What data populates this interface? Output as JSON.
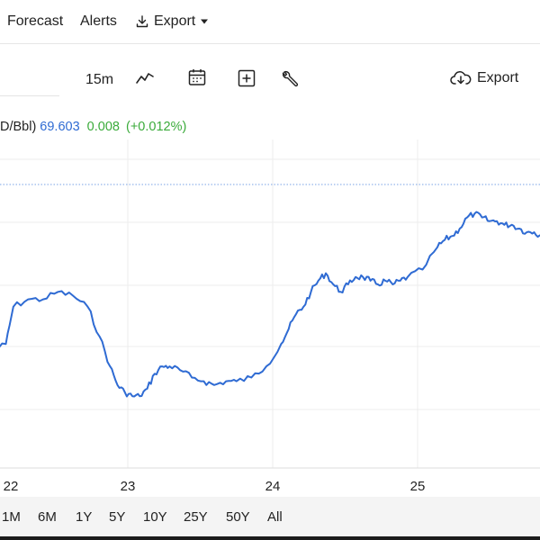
{
  "topnav": {
    "items": [
      {
        "label": "Forecast"
      },
      {
        "label": "Alerts"
      },
      {
        "label": "Export"
      }
    ]
  },
  "toolbar": {
    "interval": "15m",
    "icons": [
      "line-chart-icon",
      "calendar-icon",
      "add-indicator-icon",
      "wrench-icon"
    ],
    "export_label": "Export"
  },
  "quote": {
    "unit": "D/Bbl)",
    "price": "69.603",
    "change": "0.008",
    "change_pct": "(+0.012%)",
    "price_color": "#2f6bd3",
    "change_color": "#3bab3b"
  },
  "range_buttons": [
    "1M",
    "6M",
    "1Y",
    "5Y",
    "10Y",
    "25Y",
    "50Y",
    "All"
  ],
  "chart_data": {
    "type": "line",
    "x_tick_labels": [
      "22",
      "23",
      "24",
      "25"
    ],
    "series_color": "#2f6bd3",
    "reference_line": {
      "style": "dotted",
      "color": "#7aa3e6"
    },
    "grid": true,
    "points": [
      [
        0.0,
        0.4
      ],
      [
        0.1,
        0.41
      ],
      [
        0.15,
        0.46
      ],
      [
        0.25,
        0.47
      ],
      [
        0.35,
        0.47
      ],
      [
        0.45,
        0.48
      ],
      [
        0.55,
        0.475
      ],
      [
        0.65,
        0.46
      ],
      [
        0.73,
        0.42
      ],
      [
        0.8,
        0.38
      ],
      [
        0.85,
        0.355
      ],
      [
        0.9,
        0.345
      ],
      [
        0.95,
        0.34
      ],
      [
        1.0,
        0.34
      ],
      [
        1.05,
        0.35
      ],
      [
        1.1,
        0.37
      ],
      [
        1.15,
        0.38
      ],
      [
        1.2,
        0.38
      ],
      [
        1.27,
        0.375
      ],
      [
        1.35,
        0.365
      ],
      [
        1.43,
        0.36
      ],
      [
        1.5,
        0.355
      ],
      [
        1.58,
        0.36
      ],
      [
        1.65,
        0.36
      ],
      [
        1.75,
        0.365
      ],
      [
        1.85,
        0.38
      ],
      [
        1.95,
        0.41
      ],
      [
        2.0,
        0.43
      ],
      [
        2.05,
        0.45
      ],
      [
        2.1,
        0.46
      ],
      [
        2.15,
        0.48
      ],
      [
        2.2,
        0.495
      ],
      [
        2.25,
        0.505
      ],
      [
        2.3,
        0.49
      ],
      [
        2.35,
        0.48
      ],
      [
        2.4,
        0.49
      ],
      [
        2.45,
        0.5
      ],
      [
        2.5,
        0.5
      ],
      [
        2.55,
        0.495
      ],
      [
        2.6,
        0.49
      ],
      [
        2.65,
        0.495
      ],
      [
        2.7,
        0.49
      ],
      [
        2.75,
        0.495
      ],
      [
        2.8,
        0.5
      ],
      [
        2.9,
        0.51
      ],
      [
        3.0,
        0.54
      ],
      [
        3.05,
        0.55
      ],
      [
        3.1,
        0.555
      ],
      [
        3.15,
        0.565
      ],
      [
        3.2,
        0.58
      ],
      [
        3.25,
        0.585
      ],
      [
        3.3,
        0.58
      ],
      [
        3.35,
        0.575
      ],
      [
        3.4,
        0.575
      ],
      [
        3.45,
        0.57
      ],
      [
        3.5,
        0.57
      ],
      [
        3.55,
        0.565
      ],
      [
        3.6,
        0.56
      ],
      [
        3.65,
        0.56
      ],
      [
        3.7,
        0.555
      ],
      [
        3.8,
        0.54
      ]
    ],
    "y_range": [
      0.31,
      0.6
    ],
    "x_range": [
      0,
      3.75
    ]
  }
}
